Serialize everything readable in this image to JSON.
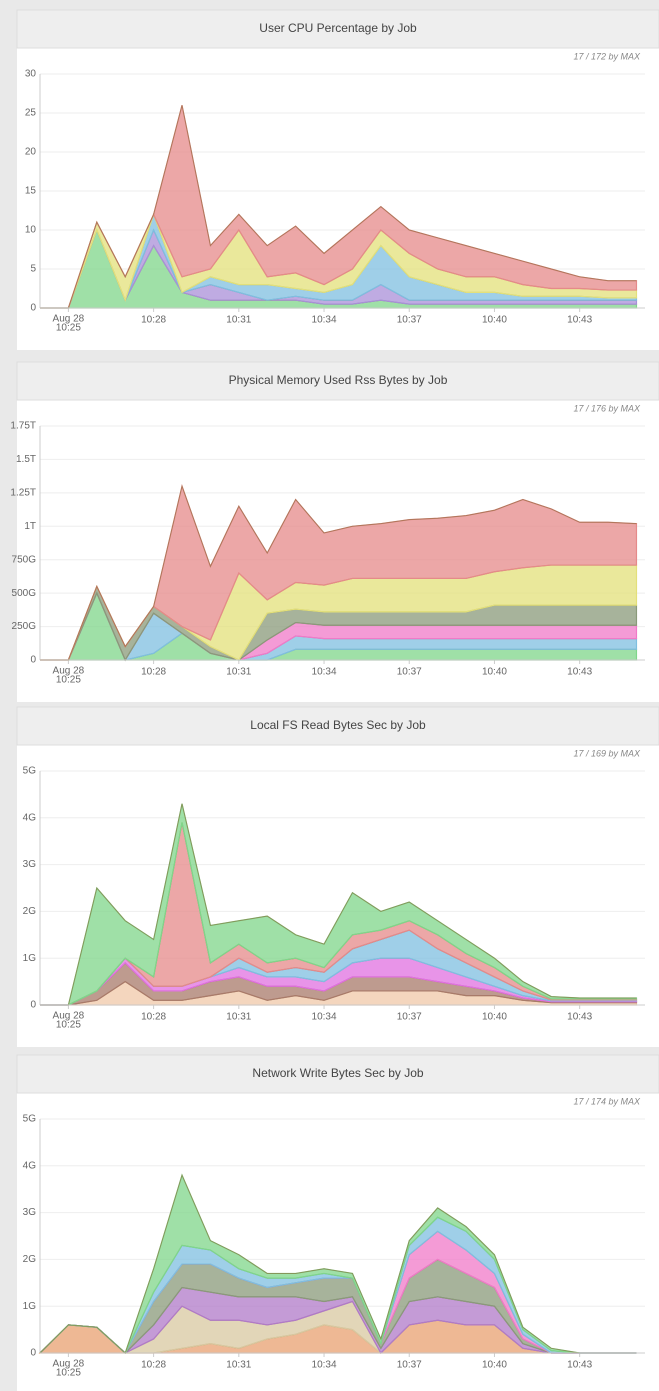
{
  "chart_data": [
    {
      "type": "area",
      "stacked": true,
      "title": "User CPU Percentage by Job",
      "note": "17 / 172 by MAX",
      "grid": true,
      "x": [
        24,
        25,
        26,
        27,
        28,
        29,
        30,
        31,
        32,
        33,
        34,
        35,
        36,
        37,
        38,
        39,
        40,
        41,
        42,
        43,
        44,
        45
      ],
      "xlim": [
        24,
        45.3
      ],
      "xticks": [
        {
          "value": 25,
          "label": [
            "Aug 28",
            "10:25"
          ]
        },
        {
          "value": 28,
          "label": "10:28"
        },
        {
          "value": 31,
          "label": "10:31"
        },
        {
          "value": 34,
          "label": "10:34"
        },
        {
          "value": 37,
          "label": "10:37"
        },
        {
          "value": 40,
          "label": "10:40"
        },
        {
          "value": 43,
          "label": "10:43"
        }
      ],
      "ylim": [
        0,
        30
      ],
      "yticks": [
        0,
        5,
        10,
        15,
        20,
        25,
        30
      ],
      "series": [
        {
          "color": "#7fd68a",
          "values": [
            0,
            0,
            10,
            1,
            8,
            2,
            1,
            1,
            1,
            1,
            0.5,
            0.5,
            1,
            0.5,
            0.5,
            0.5,
            0.5,
            0.5,
            0.5,
            0.5,
            0.5,
            0.5
          ]
        },
        {
          "color": "#a98fd8",
          "values": [
            0,
            0,
            0,
            0,
            2,
            0,
            2,
            1,
            0,
            0.5,
            0.5,
            0.5,
            2,
            0.5,
            0.5,
            0.5,
            0.5,
            0.5,
            0.5,
            0.5,
            0.5,
            0.5
          ]
        },
        {
          "color": "#7fbfe0",
          "values": [
            0,
            0,
            0,
            0,
            2,
            0,
            1,
            1,
            2,
            1,
            1,
            2,
            5,
            3,
            2,
            1,
            1,
            0.5,
            0.5,
            0.5,
            0.3,
            0.3
          ]
        },
        {
          "color": "#e3e07a",
          "values": [
            0,
            0,
            1,
            3,
            0,
            2,
            1,
            7,
            1,
            2,
            1,
            2,
            2,
            3,
            2,
            2,
            2,
            1.5,
            1,
            1,
            1,
            1
          ]
        },
        {
          "color": "#e58a8a",
          "values": [
            0,
            0,
            0,
            0,
            0,
            22,
            3,
            2,
            4,
            6,
            4,
            5,
            3,
            3,
            4,
            4,
            3,
            3,
            2.5,
            1.5,
            1.2,
            1.2
          ]
        }
      ]
    },
    {
      "type": "area",
      "stacked": true,
      "title": "Physical Memory Used Rss Bytes by Job",
      "note": "17 / 176 by MAX",
      "grid": true,
      "x": [
        24,
        25,
        26,
        27,
        28,
        29,
        30,
        31,
        32,
        33,
        34,
        35,
        36,
        37,
        38,
        39,
        40,
        41,
        42,
        43,
        44,
        45
      ],
      "xlim": [
        24,
        45.3
      ],
      "xticks": [
        {
          "value": 25,
          "label": [
            "Aug 28",
            "10:25"
          ]
        },
        {
          "value": 28,
          "label": "10:28"
        },
        {
          "value": 31,
          "label": "10:31"
        },
        {
          "value": 34,
          "label": "10:34"
        },
        {
          "value": 37,
          "label": "10:37"
        },
        {
          "value": 40,
          "label": "10:40"
        },
        {
          "value": 43,
          "label": "10:43"
        }
      ],
      "ylim": [
        0,
        1750
      ],
      "yticks": [
        0,
        {
          "value": 250,
          "label": "250G"
        },
        {
          "value": 500,
          "label": "500G"
        },
        {
          "value": 750,
          "label": "750G"
        },
        {
          "value": 1000,
          "label": "1T"
        },
        {
          "value": 1250,
          "label": "1.25T"
        },
        {
          "value": 1500,
          "label": "1.5T"
        },
        {
          "value": 1750,
          "label": "1.75T"
        }
      ],
      "series": [
        {
          "color": "#7fd68a",
          "values": [
            0,
            0,
            500,
            0,
            50,
            200,
            50,
            0,
            0,
            80,
            80,
            80,
            80,
            80,
            80,
            80,
            80,
            80,
            80,
            80,
            80,
            80
          ]
        },
        {
          "color": "#7fbfe0",
          "values": [
            0,
            0,
            0,
            0,
            300,
            0,
            0,
            0,
            50,
            100,
            80,
            80,
            80,
            80,
            80,
            80,
            80,
            80,
            80,
            80,
            80,
            80
          ]
        },
        {
          "color": "#f07ac8",
          "values": [
            0,
            0,
            0,
            0,
            0,
            0,
            0,
            0,
            100,
            100,
            100,
            100,
            100,
            100,
            100,
            100,
            100,
            100,
            100,
            100,
            100,
            100
          ]
        },
        {
          "color": "#8a9a7a",
          "values": [
            0,
            0,
            50,
            100,
            50,
            50,
            50,
            0,
            200,
            100,
            100,
            100,
            100,
            100,
            100,
            100,
            150,
            150,
            150,
            150,
            150,
            150
          ]
        },
        {
          "color": "#e3e07a",
          "values": [
            0,
            0,
            0,
            0,
            0,
            0,
            50,
            650,
            100,
            200,
            200,
            250,
            250,
            250,
            250,
            250,
            250,
            280,
            300,
            300,
            300,
            300
          ]
        },
        {
          "color": "#e58a8a",
          "values": [
            0,
            0,
            0,
            0,
            0,
            1050,
            550,
            500,
            350,
            620,
            390,
            390,
            410,
            440,
            450,
            470,
            460,
            510,
            420,
            320,
            320,
            310
          ]
        }
      ]
    },
    {
      "type": "area",
      "stacked": true,
      "title": "Local FS Read Bytes Sec by Job",
      "note": "17 / 169 by MAX",
      "grid": true,
      "x": [
        24,
        25,
        26,
        27,
        28,
        29,
        30,
        31,
        32,
        33,
        34,
        35,
        36,
        37,
        38,
        39,
        40,
        41,
        42,
        43,
        44,
        45
      ],
      "xlim": [
        24,
        45.3
      ],
      "xticks": [
        {
          "value": 25,
          "label": [
            "Aug 28",
            "10:25"
          ]
        },
        {
          "value": 28,
          "label": "10:28"
        },
        {
          "value": 31,
          "label": "10:31"
        },
        {
          "value": 34,
          "label": "10:34"
        },
        {
          "value": 37,
          "label": "10:37"
        },
        {
          "value": 40,
          "label": "10:40"
        },
        {
          "value": 43,
          "label": "10:43"
        }
      ],
      "ylim": [
        0,
        5
      ],
      "yticks": [
        0,
        {
          "value": 1,
          "label": "1G"
        },
        {
          "value": 2,
          "label": "2G"
        },
        {
          "value": 3,
          "label": "3G"
        },
        {
          "value": 4,
          "label": "4G"
        },
        {
          "value": 5,
          "label": "5G"
        }
      ],
      "series": [
        {
          "color": "#f0c8a8",
          "values": [
            0,
            0,
            0.1,
            0.5,
            0.1,
            0.1,
            0.2,
            0.3,
            0.1,
            0.2,
            0.1,
            0.3,
            0.3,
            0.3,
            0.3,
            0.2,
            0.2,
            0.1,
            0.05,
            0.05,
            0.05,
            0.05
          ]
        },
        {
          "color": "#a87a6a",
          "values": [
            0,
            0,
            0.2,
            0.4,
            0.2,
            0.2,
            0.3,
            0.3,
            0.3,
            0.2,
            0.2,
            0.3,
            0.3,
            0.3,
            0.2,
            0.2,
            0.1,
            0.05,
            0.02,
            0.02,
            0.02,
            0.02
          ]
        },
        {
          "color": "#e070e0",
          "values": [
            0,
            0,
            0,
            0.1,
            0.1,
            0.1,
            0.1,
            0.2,
            0.2,
            0.2,
            0.2,
            0.3,
            0.4,
            0.4,
            0.3,
            0.2,
            0.1,
            0.05,
            0.02,
            0.02,
            0.02,
            0.02
          ]
        },
        {
          "color": "#7fbfe0",
          "values": [
            0,
            0,
            0,
            0,
            0,
            0,
            0,
            0.2,
            0.1,
            0.2,
            0.2,
            0.3,
            0.4,
            0.6,
            0.4,
            0.3,
            0.2,
            0.1,
            0.02,
            0.02,
            0.02,
            0.02
          ]
        },
        {
          "color": "#e58a8a",
          "values": [
            0,
            0,
            0,
            0,
            0.2,
            3.5,
            0.3,
            0.3,
            0.2,
            0.2,
            0.1,
            0.3,
            0.2,
            0.2,
            0.3,
            0.2,
            0.2,
            0.1,
            0.02,
            0.02,
            0.02,
            0.02
          ]
        },
        {
          "color": "#7fd68a",
          "values": [
            0,
            0,
            2.2,
            0.8,
            0.8,
            0.4,
            0.8,
            0.5,
            1,
            0.5,
            0.5,
            0.9,
            0.4,
            0.4,
            0.3,
            0.3,
            0.2,
            0.1,
            0.05,
            0.02,
            0.02,
            0.02
          ]
        }
      ]
    },
    {
      "type": "area",
      "stacked": true,
      "title": "Network Write Bytes Sec by Job",
      "note": "17 / 174 by MAX",
      "grid": true,
      "x": [
        24,
        25,
        26,
        27,
        28,
        29,
        30,
        31,
        32,
        33,
        34,
        35,
        36,
        37,
        38,
        39,
        40,
        41,
        42,
        43,
        44,
        45
      ],
      "xlim": [
        24,
        45.3
      ],
      "xticks": [
        {
          "value": 25,
          "label": [
            "Aug 28",
            "10:25"
          ]
        },
        {
          "value": 28,
          "label": "10:28"
        },
        {
          "value": 31,
          "label": "10:31"
        },
        {
          "value": 34,
          "label": "10:34"
        },
        {
          "value": 37,
          "label": "10:37"
        },
        {
          "value": 40,
          "label": "10:40"
        },
        {
          "value": 43,
          "label": "10:43"
        }
      ],
      "ylim": [
        0,
        5
      ],
      "yticks": [
        0,
        {
          "value": 1,
          "label": "1G"
        },
        {
          "value": 2,
          "label": "2G"
        },
        {
          "value": 3,
          "label": "3G"
        },
        {
          "value": 4,
          "label": "4G"
        },
        {
          "value": 5,
          "label": "5G"
        }
      ],
      "series": [
        {
          "color": "#e8a070",
          "values": [
            0,
            0.6,
            0.55,
            0,
            0,
            0.1,
            0.2,
            0.1,
            0.3,
            0.4,
            0.6,
            0.5,
            0,
            0.6,
            0.7,
            0.6,
            0.6,
            0.1,
            0,
            0,
            0,
            0
          ]
        },
        {
          "color": "#d8c8a0",
          "values": [
            0,
            0,
            0,
            0,
            0.3,
            0.9,
            0.5,
            0.6,
            0.3,
            0.3,
            0.3,
            0.6,
            0,
            0,
            0,
            0,
            0,
            0,
            0,
            0,
            0,
            0
          ]
        },
        {
          "color": "#b07ac8",
          "values": [
            0,
            0,
            0,
            0,
            0.3,
            0.4,
            0.6,
            0.5,
            0.6,
            0.5,
            0.2,
            0.1,
            0.1,
            0.5,
            0.5,
            0.5,
            0.4,
            0.1,
            0,
            0,
            0,
            0
          ]
        },
        {
          "color": "#8a9a7a",
          "values": [
            0,
            0,
            0,
            0,
            0.5,
            0.5,
            0.6,
            0.4,
            0.2,
            0.3,
            0.5,
            0.4,
            0.1,
            0.5,
            0.8,
            0.6,
            0.4,
            0.1,
            0,
            0,
            0,
            0
          ]
        },
        {
          "color": "#f07ac8",
          "values": [
            0,
            0,
            0,
            0,
            0,
            0,
            0,
            0,
            0,
            0,
            0,
            0,
            0,
            0.5,
            0.6,
            0.5,
            0.3,
            0.1,
            0,
            0,
            0,
            0
          ]
        },
        {
          "color": "#7fbfe0",
          "values": [
            0,
            0,
            0,
            0,
            0.2,
            0.4,
            0.3,
            0.2,
            0.2,
            0.1,
            0.1,
            0,
            0,
            0.2,
            0.3,
            0.4,
            0.3,
            0.1,
            0.05,
            0,
            0,
            0
          ]
        },
        {
          "color": "#7fd68a",
          "values": [
            0,
            0,
            0,
            0,
            0.5,
            1.5,
            0.2,
            0.3,
            0.1,
            0.1,
            0.1,
            0.1,
            0.1,
            0.1,
            0.2,
            0.1,
            0.1,
            0.05,
            0.05,
            0,
            0,
            0
          ]
        }
      ]
    }
  ]
}
